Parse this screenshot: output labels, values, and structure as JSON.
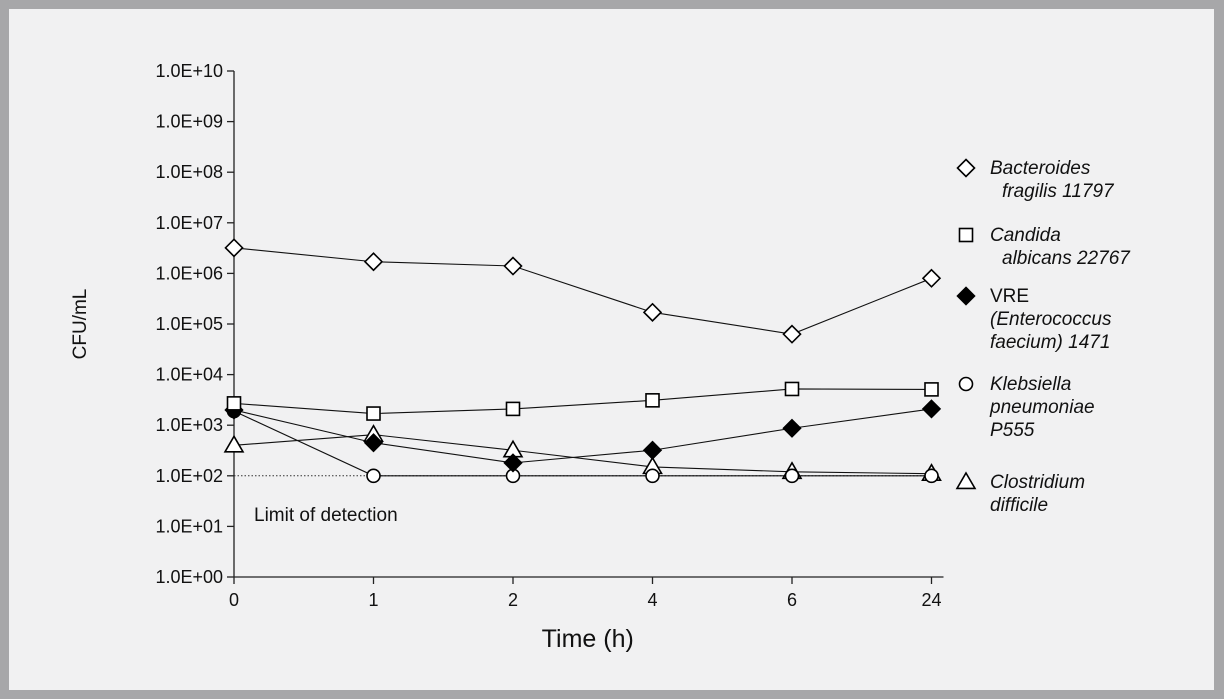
{
  "chart_data": {
    "type": "line",
    "ylabel": "CFU/mL",
    "xlabel": "Time (h)",
    "yscale": "log",
    "ylim": [
      1,
      10000000000
    ],
    "y_tick_labels": [
      "1.0E+00",
      "1.0E+01",
      "1.0E+02",
      "1.0E+03",
      "1.0E+04",
      "1.0E+05",
      "1.0E+06",
      "1.0E+07",
      "1.0E+08",
      "1.0E+09",
      "1.0E+10"
    ],
    "x_categories": [
      "0",
      "1",
      "2",
      "4",
      "6",
      "24"
    ],
    "series": [
      {
        "name": "Bacteroides fragilis 11797",
        "legend_lines": [
          "Bacteroides",
          "fragilis 11797"
        ],
        "marker": "open-diamond",
        "values": [
          3200000,
          1700000,
          1400000,
          170000,
          63000,
          800000
        ]
      },
      {
        "name": "Candida albicans 22767",
        "legend_lines": [
          "Candida",
          "albicans 22767"
        ],
        "marker": "open-square",
        "values": [
          2700,
          1700,
          2100,
          3100,
          5200,
          5100
        ]
      },
      {
        "name": "VRE (Enterococcus faecium) 1471",
        "legend_lines": [
          "VRE",
          "(Enterococcus",
          "faecium) 1471"
        ],
        "marker": "filled-diamond",
        "values": [
          2000,
          450,
          180,
          320,
          870,
          2100
        ]
      },
      {
        "name": "Klebsiella pneumoniae P555",
        "legend_lines": [
          "Klebsiella",
          "pneumoniae",
          "P555"
        ],
        "marker": "open-circle",
        "values": [
          1900,
          100,
          100,
          100,
          100,
          100
        ]
      },
      {
        "name": "Clostridium difficile",
        "legend_lines": [
          "Clostridium",
          "difficile"
        ],
        "marker": "open-triangle",
        "values": [
          400,
          650,
          320,
          150,
          120,
          110
        ]
      }
    ],
    "reference_line": {
      "value": 100,
      "style": "dotted",
      "label": "Limit of detection"
    },
    "grid": false,
    "legend_position": "right"
  }
}
